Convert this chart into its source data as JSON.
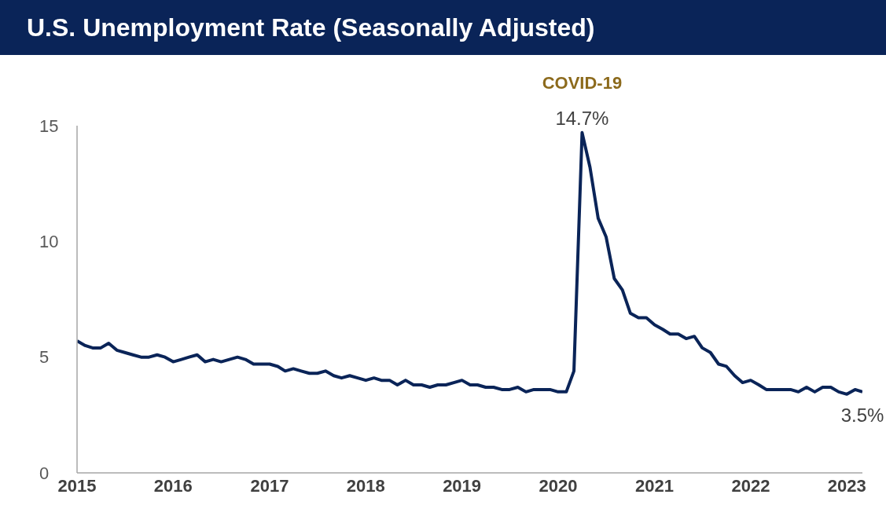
{
  "chart_data": {
    "type": "line",
    "title": "U.S. Unemployment Rate (Seasonally Adjusted)",
    "x": [
      "2015-01",
      "2015-02",
      "2015-03",
      "2015-04",
      "2015-05",
      "2015-06",
      "2015-07",
      "2015-08",
      "2015-09",
      "2015-10",
      "2015-11",
      "2015-12",
      "2016-01",
      "2016-02",
      "2016-03",
      "2016-04",
      "2016-05",
      "2016-06",
      "2016-07",
      "2016-08",
      "2016-09",
      "2016-10",
      "2016-11",
      "2016-12",
      "2017-01",
      "2017-02",
      "2017-03",
      "2017-04",
      "2017-05",
      "2017-06",
      "2017-07",
      "2017-08",
      "2017-09",
      "2017-10",
      "2017-11",
      "2017-12",
      "2018-01",
      "2018-02",
      "2018-03",
      "2018-04",
      "2018-05",
      "2018-06",
      "2018-07",
      "2018-08",
      "2018-09",
      "2018-10",
      "2018-11",
      "2018-12",
      "2019-01",
      "2019-02",
      "2019-03",
      "2019-04",
      "2019-05",
      "2019-06",
      "2019-07",
      "2019-08",
      "2019-09",
      "2019-10",
      "2019-11",
      "2019-12",
      "2020-01",
      "2020-02",
      "2020-03",
      "2020-04",
      "2020-05",
      "2020-06",
      "2020-07",
      "2020-08",
      "2020-09",
      "2020-10",
      "2020-11",
      "2020-12",
      "2021-01",
      "2021-02",
      "2021-03",
      "2021-04",
      "2021-05",
      "2021-06",
      "2021-07",
      "2021-08",
      "2021-09",
      "2021-10",
      "2021-11",
      "2021-12",
      "2022-01",
      "2022-02",
      "2022-03",
      "2022-04",
      "2022-05",
      "2022-06",
      "2022-07",
      "2022-08",
      "2022-09",
      "2022-10",
      "2022-11",
      "2022-12",
      "2023-01",
      "2023-02",
      "2023-03"
    ],
    "series": [
      {
        "color": "#0a2458",
        "values": [
          5.7,
          5.5,
          5.4,
          5.4,
          5.6,
          5.3,
          5.2,
          5.1,
          5.0,
          5.0,
          5.1,
          5.0,
          4.8,
          4.9,
          5.0,
          5.1,
          4.8,
          4.9,
          4.8,
          4.9,
          5.0,
          4.9,
          4.7,
          4.7,
          4.7,
          4.6,
          4.4,
          4.5,
          4.4,
          4.3,
          4.3,
          4.4,
          4.2,
          4.1,
          4.2,
          4.1,
          4.0,
          4.1,
          4.0,
          4.0,
          3.8,
          4.0,
          3.8,
          3.8,
          3.7,
          3.8,
          3.8,
          3.9,
          4.0,
          3.8,
          3.8,
          3.7,
          3.7,
          3.6,
          3.6,
          3.7,
          3.5,
          3.6,
          3.6,
          3.6,
          3.5,
          3.5,
          4.4,
          14.7,
          13.2,
          11.0,
          10.2,
          8.4,
          7.9,
          6.9,
          6.7,
          6.7,
          6.4,
          6.2,
          6.0,
          6.0,
          5.8,
          5.9,
          5.4,
          5.2,
          4.7,
          4.6,
          4.2,
          3.9,
          4.0,
          3.8,
          3.6,
          3.6,
          3.6,
          3.6,
          3.5,
          3.7,
          3.5,
          3.7,
          3.7,
          3.5,
          3.4,
          3.6,
          3.5
        ],
        "value_labels": [
          null,
          null,
          null,
          null,
          null,
          null,
          null,
          null,
          null,
          null,
          null,
          null,
          null,
          null,
          null,
          null,
          null,
          null,
          null,
          null,
          null,
          null,
          null,
          null,
          null,
          null,
          null,
          null,
          null,
          null,
          null,
          null,
          null,
          null,
          null,
          null,
          null,
          null,
          null,
          null,
          null,
          null,
          null,
          null,
          null,
          null,
          null,
          null,
          null,
          null,
          null,
          null,
          null,
          null,
          null,
          null,
          null,
          null,
          null,
          null,
          null,
          null,
          null,
          "14.7%",
          null,
          null,
          null,
          null,
          null,
          null,
          null,
          null,
          null,
          null,
          null,
          null,
          null,
          null,
          null,
          null,
          null,
          null,
          null,
          null,
          null,
          null,
          null,
          null,
          null,
          null,
          null,
          null,
          null,
          null,
          null,
          null,
          null,
          null,
          "3.5%"
        ]
      }
    ],
    "annotations": [
      {
        "text": "COVID-19",
        "x": "2020-04",
        "y": 14.7
      }
    ],
    "xlim": [
      "2015-01",
      "2023-03"
    ],
    "xticks": [
      "2015",
      "2016",
      "2017",
      "2018",
      "2019",
      "2020",
      "2021",
      "2022",
      "2023"
    ],
    "ylim": [
      0,
      15
    ],
    "yticks": [
      0,
      5,
      10,
      15
    ],
    "grid": false,
    "marker": "none",
    "line_style": "solid"
  }
}
